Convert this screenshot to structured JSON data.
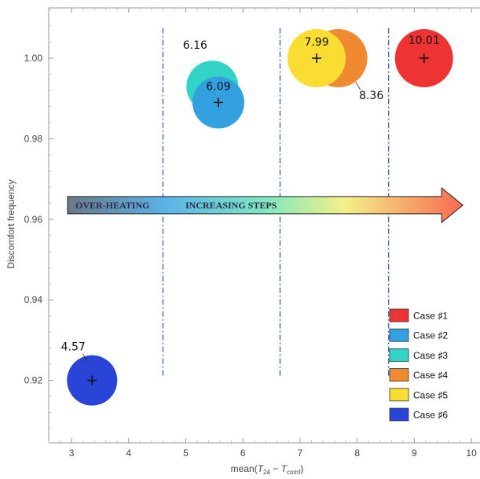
{
  "chart_data": {
    "type": "scatter",
    "xlabel": "mean(T24 − Tcomf)",
    "xlabel_parts": {
      "prefix": "mean(",
      "t1": "T",
      "s1": "24",
      "minus": " − ",
      "t2": "T",
      "s2": "comf",
      "suffix": ")"
    },
    "ylabel": "Discomfort frequency",
    "xlim": [
      2.6,
      10.15
    ],
    "ylim": [
      0.9045,
      1.0125
    ],
    "x_ticks": [
      3,
      4,
      5,
      6,
      7,
      8,
      9,
      10
    ],
    "x_tick_labels": [
      "3",
      "4",
      "5",
      "6",
      "7",
      "8",
      "9",
      "10"
    ],
    "y_ticks": [
      0.92,
      0.94,
      0.96,
      0.98,
      1.0
    ],
    "y_tick_labels": [
      "0.92",
      "0.94",
      "0.96",
      "0.98",
      "1.00"
    ],
    "grid": false,
    "legend_position": "bottom-right",
    "series": [
      {
        "name": "Case ♯1",
        "color": "#ee3333",
        "x": 9.17,
        "y": 1.0,
        "label": "10.01"
      },
      {
        "name": "Case ♯2",
        "color": "#33a0e0",
        "x": 5.57,
        "y": 0.989,
        "label": "6.09"
      },
      {
        "name": "Case ♯3",
        "color": "#33d4c8",
        "x": 5.52,
        "y": 0.991,
        "label": "6.16"
      },
      {
        "name": "Case ♯4",
        "color": "#f08a30",
        "x": 7.67,
        "y": 1.0,
        "label": "8.36"
      },
      {
        "name": "Case ♯5",
        "color": "#fadd33",
        "x": 7.29,
        "y": 1.0,
        "label": "7.99"
      },
      {
        "name": "Case ♯6",
        "color": "#2a44d8",
        "x": 3.36,
        "y": 0.92,
        "label": "4.57"
      }
    ],
    "divider_lines_x": [
      4.6,
      6.65,
      8.55
    ],
    "annotation": {
      "text_left": "OVER-HEATING",
      "text_right": "INCREASING STEPS",
      "y": 0.9635,
      "x_start": 2.93,
      "x_end": 9.85
    }
  }
}
